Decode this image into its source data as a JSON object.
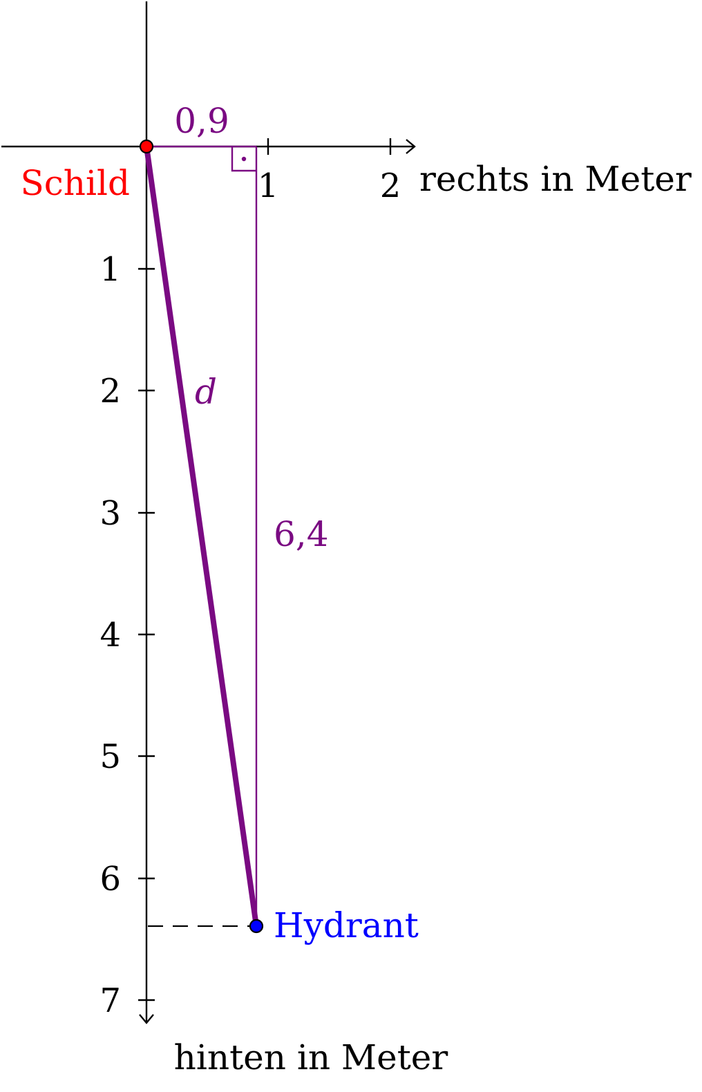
{
  "axes": {
    "x_label": "rechts in Meter",
    "y_label": "hinten in Meter",
    "x_ticks": [
      "1",
      "2"
    ],
    "y_ticks": [
      "1",
      "2",
      "3",
      "4",
      "5",
      "6",
      "7"
    ]
  },
  "points": {
    "schild": {
      "label": "Schild",
      "x": 0,
      "y": 0,
      "color": "#ff0000"
    },
    "hydrant": {
      "label": "Hydrant",
      "x": 0.9,
      "y": 6.4,
      "color": "#0000ff"
    }
  },
  "triangle": {
    "horizontal_label": "0,9",
    "vertical_label": "6,4",
    "hypotenuse_label": "d",
    "color": "#7a0a82"
  },
  "colors": {
    "axis": "#000000"
  }
}
